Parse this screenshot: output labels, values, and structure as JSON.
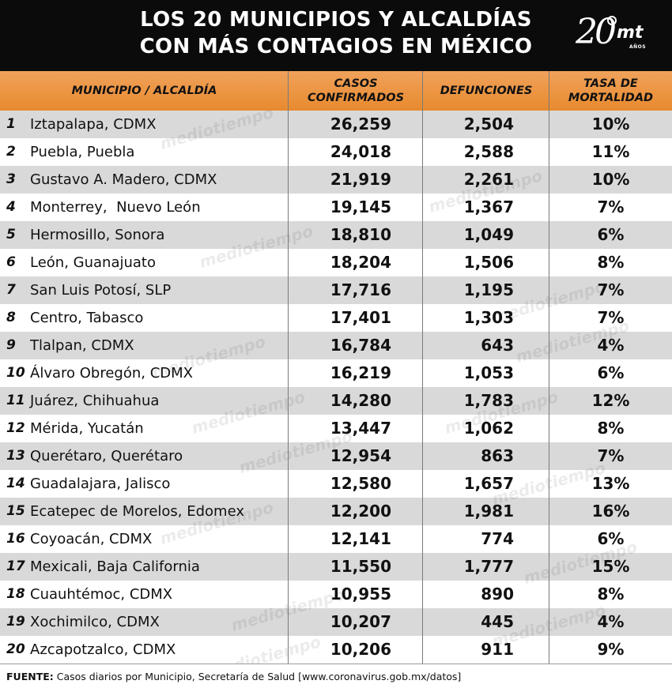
{
  "title_lines": [
    "LOS 20 MUNICIPIOS Y ALCALDÍAS",
    "CON MÁS CONTAGIOS EN MÉXICO"
  ],
  "logo": {
    "number": "20",
    "brand": "mt",
    "caption": "AÑOS"
  },
  "watermark": "mediotiempo",
  "chart_data": {
    "type": "table",
    "columns": [
      "MUNICIPIO / ALCALDÍA",
      "CASOS CONFIRMADOS",
      "DEFUNCIONES",
      "TASA DE MORTALIDAD"
    ],
    "header_lines": [
      [
        "MUNICIPIO / ALCALDÍA"
      ],
      [
        "CASOS",
        "CONFIRMADOS"
      ],
      [
        "DEFUNCIONES"
      ],
      [
        "TASA DE",
        "MORTALIDAD"
      ]
    ],
    "rows": [
      {
        "rank": "1",
        "name": "Iztapalapa, CDMX",
        "cases": "26,259",
        "deaths": "2,504",
        "rate": "10%"
      },
      {
        "rank": "2",
        "name": "Puebla, Puebla",
        "cases": "24,018",
        "deaths": "2,588",
        "rate": "11%"
      },
      {
        "rank": "3",
        "name": "Gustavo A. Madero, CDMX",
        "cases": "21,919",
        "deaths": "2,261",
        "rate": "10%"
      },
      {
        "rank": "4",
        "name": "Monterrey,  Nuevo León",
        "cases": "19,145",
        "deaths": "1,367",
        "rate": "7%"
      },
      {
        "rank": "5",
        "name": "Hermosillo, Sonora",
        "cases": "18,810",
        "deaths": "1,049",
        "rate": "6%"
      },
      {
        "rank": "6",
        "name": "León, Guanajuato",
        "cases": "18,204",
        "deaths": "1,506",
        "rate": "8%"
      },
      {
        "rank": "7",
        "name": "San Luis Potosí, SLP",
        "cases": "17,716",
        "deaths": "1,195",
        "rate": "7%"
      },
      {
        "rank": "8",
        "name": "Centro, Tabasco",
        "cases": "17,401",
        "deaths": "1,303",
        "rate": "7%"
      },
      {
        "rank": "9",
        "name": "Tlalpan, CDMX",
        "cases": "16,784",
        "deaths": "643",
        "rate": "4%"
      },
      {
        "rank": "10",
        "name": "Álvaro Obregón, CDMX",
        "cases": "16,219",
        "deaths": "1,053",
        "rate": "6%"
      },
      {
        "rank": "11",
        "name": "Juárez, Chihuahua",
        "cases": "14,280",
        "deaths": "1,783",
        "rate": "12%"
      },
      {
        "rank": "12",
        "name": "Mérida, Yucatán",
        "cases": "13,447",
        "deaths": "1,062",
        "rate": "8%"
      },
      {
        "rank": "13",
        "name": "Querétaro, Querétaro",
        "cases": "12,954",
        "deaths": "863",
        "rate": "7%"
      },
      {
        "rank": "14",
        "name": "Guadalajara, Jalisco",
        "cases": "12,580",
        "deaths": "1,657",
        "rate": "13%"
      },
      {
        "rank": "15",
        "name": "Ecatepec de Morelos, Edomex",
        "cases": "12,200",
        "deaths": "1,981",
        "rate": "16%"
      },
      {
        "rank": "16",
        "name": "Coyoacán, CDMX",
        "cases": "12,141",
        "deaths": "774",
        "rate": "6%"
      },
      {
        "rank": "17",
        "name": "Mexicali, Baja California",
        "cases": "11,550",
        "deaths": "1,777",
        "rate": "15%"
      },
      {
        "rank": "18",
        "name": "Cuauhtémoc, CDMX",
        "cases": "10,955",
        "deaths": "890",
        "rate": "8%"
      },
      {
        "rank": "19",
        "name": "Xochimilco, CDMX",
        "cases": "10,207",
        "deaths": "445",
        "rate": "4%"
      },
      {
        "rank": "20",
        "name": "Azcapotzalco, CDMX",
        "cases": "10,206",
        "deaths": "911",
        "rate": "9%"
      }
    ]
  },
  "footer": {
    "source_label": "FUENTE:",
    "source_text": " Casos diarios por Municipio, Secretaría de Salud [www.coronavirus.gob.mx/datos]"
  },
  "colors": {
    "title_bg": "#0b0b0b",
    "header_bg": "#e88a2e",
    "row_shaded": "#d9d9d9",
    "row_plain": "#ffffff"
  }
}
